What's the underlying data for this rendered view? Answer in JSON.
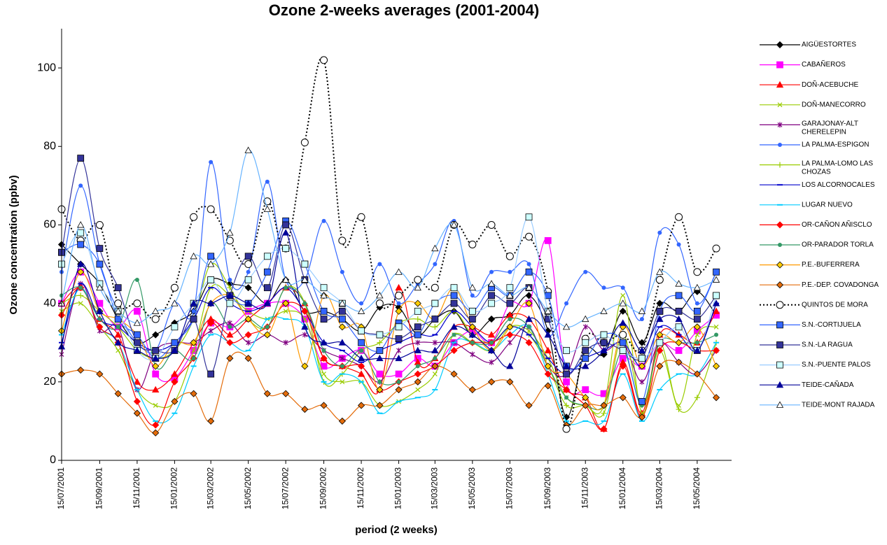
{
  "chart_data": {
    "type": "line",
    "title": "Ozone 2-weeks averages (2001-2004)",
    "x_label": "period (2 weeks)",
    "y_label": "Ozone concentration (ppbv)",
    "ylim": [
      0,
      110
    ],
    "yticks": [
      0,
      20,
      40,
      60,
      80,
      100
    ],
    "xlim": [
      "15/07/2001",
      "10/07/2004"
    ],
    "xticks": [
      "15/07/2001",
      "15/09/2001",
      "15/11/2001",
      "15/01/2002",
      "15/03/2002",
      "15/05/2002",
      "15/07/2002",
      "15/09/2002",
      "15/11/2002",
      "15/01/2003",
      "15/03/2003",
      "15/05/2003",
      "15/07/2003",
      "15/09/2003",
      "15/11/2003",
      "15/01/2004",
      "15/03/2004",
      "15/05/2004"
    ],
    "legend": "right",
    "x": [
      "15/07/2001",
      "15/08/2001",
      "15/09/2001",
      "15/10/2001",
      "15/11/2001",
      "15/12/2001",
      "15/01/2002",
      "15/02/2002",
      "15/03/2002",
      "15/04/2002",
      "15/05/2002",
      "15/06/2002",
      "15/07/2002",
      "15/08/2002",
      "15/09/2002",
      "15/10/2002",
      "15/11/2002",
      "15/12/2002",
      "15/01/2003",
      "15/02/2003",
      "15/03/2003",
      "15/04/2003",
      "15/05/2003",
      "15/06/2003",
      "15/07/2003",
      "15/08/2003",
      "15/09/2003",
      "15/10/2003",
      "15/11/2003",
      "15/12/2003",
      "15/01/2004",
      "15/02/2004",
      "15/03/2004",
      "15/04/2004",
      "15/05/2004",
      "15/06/2004"
    ],
    "series": [
      {
        "name": "AIGÜESTORTES",
        "color": "#000000",
        "marker": "diamond",
        "values": [
          55,
          50,
          45,
          36,
          30,
          32,
          35,
          38,
          46,
          45,
          44,
          40,
          46,
          38,
          38,
          36,
          33,
          39,
          39,
          32,
          36,
          38,
          32,
          36,
          37,
          42,
          33,
          11,
          28,
          27,
          38,
          30,
          40,
          38,
          43,
          37
        ]
      },
      {
        "name": "CABAÑEROS",
        "color": "#ff00ff",
        "marker": "square",
        "values": [
          40,
          48,
          40,
          34,
          38,
          22,
          21,
          28,
          35,
          34,
          38,
          40,
          40,
          36,
          24,
          26,
          28,
          22,
          22,
          26,
          24,
          30,
          33,
          30,
          40,
          40,
          56,
          20,
          18,
          17,
          26,
          24,
          30,
          28,
          33,
          37
        ]
      },
      {
        "name": "DOÑ-ACEBUCHE",
        "color": "#ff0000",
        "marker": "triangle",
        "values": [
          40,
          44,
          36,
          32,
          20,
          18,
          22,
          30,
          36,
          32,
          36,
          40,
          44,
          40,
          26,
          24,
          22,
          18,
          44,
          25,
          26,
          34,
          34,
          32,
          37,
          36,
          28,
          18,
          16,
          8,
          25,
          12,
          32,
          32,
          30,
          38
        ]
      },
      {
        "name": "DOÑ-MANECORRO",
        "color": "#99cc00",
        "marker": "x",
        "values": [
          38,
          40,
          34,
          28,
          18,
          14,
          15,
          28,
          44,
          42,
          38,
          36,
          38,
          36,
          22,
          20,
          20,
          14,
          15,
          18,
          22,
          32,
          30,
          28,
          34,
          33,
          26,
          16,
          14,
          14,
          42,
          12,
          30,
          14,
          32,
          34
        ]
      },
      {
        "name": "GARAJONAY-ALT CHERELEPIN",
        "color": "#800080",
        "marker": "star",
        "values": [
          27,
          45,
          33,
          34,
          18,
          28,
          30,
          30,
          33,
          35,
          30,
          32,
          30,
          32,
          28,
          26,
          24,
          20,
          28,
          30,
          30,
          30,
          27,
          25,
          30,
          34,
          24,
          22,
          34,
          28,
          30,
          20,
          30,
          25,
          22,
          28
        ]
      },
      {
        "name": "LA PALMA-ESPIGON",
        "color": "#3366ff",
        "marker": "circle",
        "values": [
          48,
          70,
          50,
          38,
          30,
          28,
          40,
          38,
          76,
          46,
          48,
          71,
          46,
          46,
          61,
          48,
          40,
          50,
          40,
          45,
          50,
          61,
          42,
          48,
          48,
          50,
          32,
          40,
          48,
          44,
          44,
          36,
          58,
          55,
          40,
          48
        ]
      },
      {
        "name": "LA PALMA-LOMO LAS CHOZAS",
        "color": "#99cc00",
        "marker": "plus",
        "values": [
          40,
          42,
          38,
          34,
          28,
          26,
          28,
          36,
          50,
          44,
          36,
          34,
          44,
          40,
          20,
          22,
          28,
          30,
          35,
          36,
          34,
          38,
          32,
          30,
          34,
          32,
          24,
          14,
          14,
          12,
          32,
          14,
          28,
          13,
          16,
          30
        ]
      },
      {
        "name": "LOS ALCORNOCALES",
        "color": "#0000cc",
        "marker": "dash",
        "values": [
          30,
          45,
          36,
          34,
          30,
          28,
          30,
          36,
          44,
          40,
          38,
          40,
          44,
          38,
          30,
          28,
          25,
          28,
          30,
          32,
          32,
          38,
          34,
          30,
          34,
          32,
          26,
          22,
          26,
          28,
          30,
          24,
          34,
          32,
          28,
          40
        ]
      },
      {
        "name": "LUGAR NUEVO",
        "color": "#00ccff",
        "marker": "dash",
        "values": [
          32,
          44,
          34,
          30,
          18,
          10,
          12,
          24,
          32,
          30,
          28,
          36,
          36,
          34,
          20,
          22,
          20,
          12,
          15,
          16,
          18,
          30,
          30,
          28,
          32,
          34,
          22,
          10,
          10,
          10,
          22,
          10,
          18,
          22,
          22,
          30
        ]
      },
      {
        "name": "OR-CAÑON AÑISCLO",
        "color": "#ff0000",
        "marker": "diamond",
        "values": [
          37,
          44,
          34,
          30,
          15,
          9,
          20,
          26,
          35,
          30,
          32,
          34,
          40,
          38,
          26,
          24,
          24,
          18,
          20,
          22,
          24,
          28,
          30,
          30,
          32,
          30,
          22,
          18,
          14,
          8,
          24,
          11,
          28,
          30,
          28,
          28
        ]
      },
      {
        "name": "OR-PARADOR TORLA",
        "color": "#339966",
        "marker": "circle",
        "values": [
          42,
          44,
          36,
          34,
          46,
          24,
          28,
          26,
          40,
          34,
          36,
          34,
          44,
          40,
          28,
          24,
          28,
          20,
          20,
          24,
          26,
          32,
          30,
          30,
          36,
          34,
          24,
          16,
          14,
          14,
          28,
          14,
          30,
          30,
          30,
          32
        ]
      },
      {
        "name": "P.E.-BUFERRERA",
        "color": "#ff9900",
        "marker": "diamond-yellow",
        "values": [
          33,
          48,
          38,
          36,
          32,
          24,
          30,
          30,
          40,
          42,
          36,
          32,
          40,
          24,
          42,
          34,
          34,
          18,
          38,
          40,
          36,
          44,
          34,
          28,
          34,
          40,
          24,
          22,
          16,
          14,
          34,
          24,
          32,
          30,
          34,
          24
        ]
      },
      {
        "name": "P.E.-DEP. COVADONGA",
        "color": "#e46c0a",
        "marker": "diamond-orange",
        "values": [
          22,
          23,
          22,
          17,
          12,
          7,
          15,
          17,
          10,
          26,
          26,
          17,
          17,
          13,
          14,
          10,
          14,
          14,
          18,
          20,
          24,
          22,
          18,
          20,
          20,
          14,
          19,
          9,
          14,
          14,
          16,
          11,
          24,
          25,
          22,
          16
        ]
      },
      {
        "name": "QUINTOS DE MORA",
        "color": "#000000",
        "marker": "circle-dot",
        "dashed": true,
        "values": [
          64,
          56,
          60,
          40,
          40,
          36,
          44,
          62,
          64,
          56,
          50,
          66,
          54,
          81,
          102,
          56,
          62,
          40,
          42,
          46,
          44,
          60,
          55,
          60,
          52,
          57,
          43,
          8,
          31,
          30,
          32,
          28,
          46,
          62,
          48,
          54
        ]
      },
      {
        "name": "S.N.-CORTIJUELA",
        "color": "#3366ff",
        "marker": "square-blue",
        "values": [
          53,
          55,
          50,
          36,
          32,
          26,
          30,
          36,
          52,
          42,
          40,
          48,
          61,
          50,
          38,
          36,
          30,
          28,
          35,
          32,
          40,
          42,
          38,
          44,
          42,
          48,
          42,
          24,
          26,
          32,
          30,
          15,
          38,
          42,
          38,
          48
        ]
      },
      {
        "name": "S.N.-LA RAGUA",
        "color": "#333399",
        "marker": "square-navy",
        "values": [
          53,
          77,
          54,
          44,
          30,
          28,
          28,
          36,
          22,
          42,
          52,
          44,
          60,
          46,
          36,
          38,
          33,
          32,
          31,
          34,
          36,
          40,
          36,
          42,
          40,
          44,
          36,
          22,
          28,
          30,
          28,
          26,
          38,
          38,
          36,
          42
        ]
      },
      {
        "name": "S.N.-PUENTE PALOS",
        "color": "#99ccff",
        "marker": "square-light",
        "values": [
          50,
          58,
          45,
          38,
          28,
          26,
          34,
          40,
          46,
          40,
          46,
          52,
          54,
          50,
          44,
          40,
          33,
          32,
          34,
          38,
          40,
          44,
          38,
          40,
          44,
          62,
          38,
          28,
          30,
          32,
          28,
          26,
          30,
          34,
          28,
          42
        ]
      },
      {
        "name": "TEIDE-CAÑADA",
        "color": "#000099",
        "marker": "triangle",
        "values": [
          29,
          50,
          38,
          30,
          28,
          26,
          28,
          40,
          40,
          42,
          40,
          40,
          58,
          34,
          30,
          30,
          26,
          26,
          26,
          28,
          28,
          34,
          32,
          28,
          24,
          36,
          32,
          24,
          24,
          28,
          35,
          28,
          36,
          36,
          28,
          40
        ]
      },
      {
        "name": "TEIDE-MONT RAJADA",
        "color": "#66b3ff",
        "marker": "triangle-open",
        "values": [
          40,
          60,
          44,
          38,
          35,
          38,
          40,
          52,
          50,
          58,
          79,
          64,
          46,
          46,
          42,
          40,
          38,
          42,
          48,
          44,
          54,
          60,
          44,
          45,
          42,
          44,
          38,
          34,
          36,
          38,
          40,
          38,
          48,
          45,
          44,
          46
        ]
      }
    ]
  }
}
